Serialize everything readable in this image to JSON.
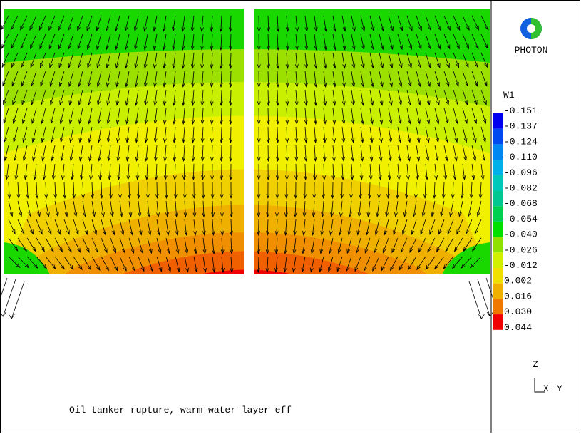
{
  "logo": {
    "label": "PHOTON"
  },
  "legend": {
    "title": "W1",
    "labels": [
      "-0.151",
      "-0.137",
      "-0.124",
      "-0.110",
      "-0.096",
      "-0.082",
      "-0.068",
      "-0.054",
      "-0.040",
      "-0.026",
      "-0.012",
      "0.002",
      "0.016",
      "0.030",
      "0.044"
    ],
    "colors": [
      "#0000f0",
      "#0048f0",
      "#0088f0",
      "#00b0e8",
      "#00c8b8",
      "#00c890",
      "#00d050",
      "#00e000",
      "#90e000",
      "#d0f000",
      "#f0e000",
      "#f0b000",
      "#f07800",
      "#f00000"
    ]
  },
  "axes": {
    "z": "Z",
    "x": "X",
    "y": "Y"
  },
  "caption": "Oil tanker rupture, warm-water layer eff"
}
